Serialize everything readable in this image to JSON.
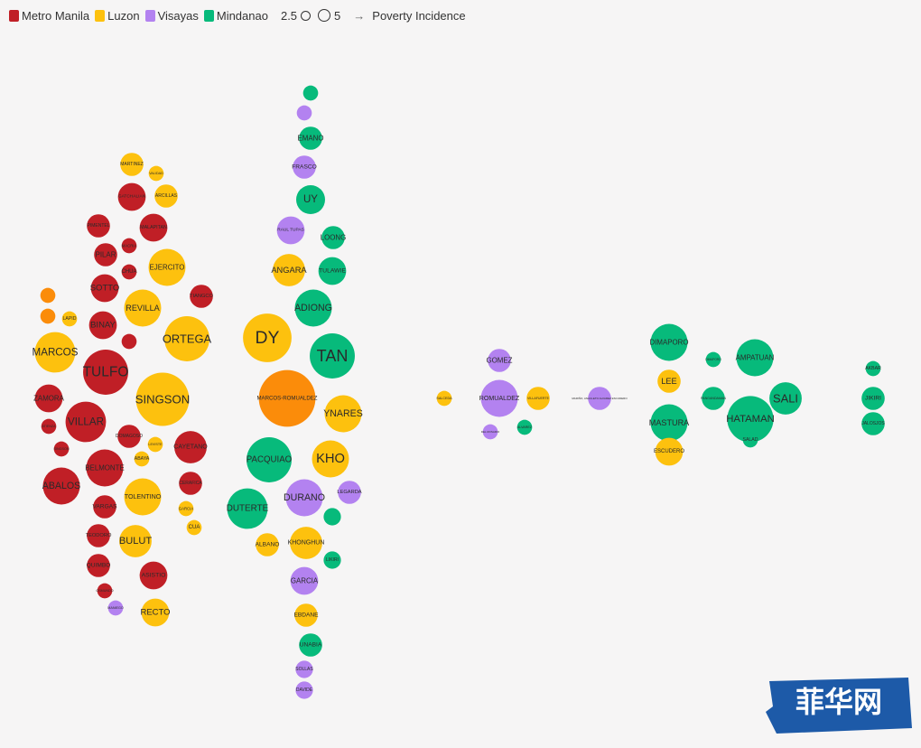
{
  "legend": {
    "items": [
      {
        "label": "Metro Manila",
        "color": "#c01f26"
      },
      {
        "label": "Luzon",
        "color": "#fdc10e"
      },
      {
        "label": "Visayas",
        "color": "#b382f0"
      },
      {
        "label": "Mindanao",
        "color": "#07ba7b"
      }
    ],
    "size_small": "2.5",
    "size_large": "5",
    "arrow": "→",
    "x_measure": "Poverty Incidence"
  },
  "colors": {
    "Metro Manila": "#c01f26",
    "Luzon": "#fdc10e",
    "Visayas": "#b382f0",
    "Mindanao": "#07ba7b",
    "Mixed": "#fb8c0a"
  },
  "watermark": {
    "text": "菲华网",
    "color": "#1d5aa8"
  },
  "chart_data": {
    "type": "scatter",
    "subtype": "beeswarm bubble chart",
    "x_measure": "Poverty Incidence",
    "size_legend": [
      2.5,
      5
    ],
    "bubbles": [
      {
        "label": "",
        "group": "Mindanao",
        "size": 1.3
      },
      {
        "label": "",
        "group": "Visayas",
        "size": 1.3
      },
      {
        "label": "EMANO",
        "group": "Mindanao",
        "size": 2.0
      },
      {
        "label": "FRASCO",
        "group": "Visayas",
        "size": 2.0
      },
      {
        "label": "UY",
        "group": "Mindanao",
        "size": 2.5
      },
      {
        "label": "RAUL TUPAS",
        "group": "Visayas",
        "size": 2.4
      },
      {
        "label": "LOONG",
        "group": "Mindanao",
        "size": 2.0
      },
      {
        "label": "ANGARA",
        "group": "Luzon",
        "size": 2.8
      },
      {
        "label": "TULAWIE",
        "group": "Mindanao",
        "size": 2.4
      },
      {
        "label": "ADIONG",
        "group": "Mindanao",
        "size": 3.2
      },
      {
        "label": "DY",
        "group": "Luzon",
        "size": 4.2
      },
      {
        "label": "TAN",
        "group": "Mindanao",
        "size": 3.9
      },
      {
        "label": "MARCOS-ROMUALDEZ",
        "group": "Mixed",
        "size": 4.9
      },
      {
        "label": "YNARES",
        "group": "Luzon",
        "size": 3.2
      },
      {
        "label": "PACQUIAO",
        "group": "Mindanao",
        "size": 3.9
      },
      {
        "label": "KHO",
        "group": "Luzon",
        "size": 3.2
      },
      {
        "label": "DURANO",
        "group": "Visayas",
        "size": 3.2
      },
      {
        "label": "LEGARDA",
        "group": "Visayas",
        "size": 2.0
      },
      {
        "label": "DUTERTE",
        "group": "Mindanao",
        "size": 3.5
      },
      {
        "label": "",
        "group": "Mindanao",
        "size": 1.5
      },
      {
        "label": "ALBANO",
        "group": "Luzon",
        "size": 2.0
      },
      {
        "label": "KHONGHUN",
        "group": "Luzon",
        "size": 2.8
      },
      {
        "label": "LIKIRI",
        "group": "Mindanao",
        "size": 1.5
      },
      {
        "label": "GARCIA",
        "group": "Visayas",
        "size": 2.4
      },
      {
        "label": "EBDANE",
        "group": "Luzon",
        "size": 2.0
      },
      {
        "label": "UNABIA",
        "group": "Mindanao",
        "size": 2.0
      },
      {
        "label": "SOLLAS",
        "group": "Visayas",
        "size": 1.5
      },
      {
        "label": "DAVIDE",
        "group": "Visayas",
        "size": 1.5
      },
      {
        "label": "MARTINEZ",
        "group": "Luzon",
        "size": 2.0
      },
      {
        "label": "VALIDAD",
        "group": "Luzon",
        "size": 1.3
      },
      {
        "label": "GATCHALIAN",
        "group": "Metro Manila",
        "size": 2.4
      },
      {
        "label": "ARCILLAS",
        "group": "Luzon",
        "size": 2.0
      },
      {
        "label": "PIMENTEL",
        "group": "Metro Manila",
        "size": 2.0
      },
      {
        "label": "MALAPITAN",
        "group": "Metro Manila",
        "size": 2.4
      },
      {
        "label": "MACRIA",
        "group": "Metro Manila",
        "size": 1.3
      },
      {
        "label": "PILAR",
        "group": "Metro Manila",
        "size": 2.0
      },
      {
        "label": "CHUA",
        "group": "Metro Manila",
        "size": 1.3
      },
      {
        "label": "EJERCITO",
        "group": "Luzon",
        "size": 3.2
      },
      {
        "label": "SOTTO",
        "group": "Metro Manila",
        "size": 2.4
      },
      {
        "label": "TIANGCO",
        "group": "Metro Manila",
        "size": 2.0
      },
      {
        "label": "",
        "group": "Mixed",
        "size": 1.3
      },
      {
        "label": "",
        "group": "Mixed",
        "size": 1.3
      },
      {
        "label": "REVILLA",
        "group": "Luzon",
        "size": 3.2
      },
      {
        "label": "LAPID",
        "group": "Luzon",
        "size": 1.3
      },
      {
        "label": "BINAY",
        "group": "Metro Manila",
        "size": 2.4
      },
      {
        "label": "ORTEGA",
        "group": "Luzon",
        "size": 3.9
      },
      {
        "label": "",
        "group": "Metro Manila",
        "size": 1.3
      },
      {
        "label": "MARCOS",
        "group": "Luzon",
        "size": 3.5
      },
      {
        "label": "TULFO",
        "group": "Metro Manila",
        "size": 3.9
      },
      {
        "label": "SINGSON",
        "group": "Luzon",
        "size": 4.6
      },
      {
        "label": "ZAMORA",
        "group": "Metro Manila",
        "size": 2.4
      },
      {
        "label": "VILLAR",
        "group": "Metro Manila",
        "size": 3.5
      },
      {
        "label": "ATIENZA",
        "group": "Metro Manila",
        "size": 1.3
      },
      {
        "label": "DOMAGOSO",
        "group": "Metro Manila",
        "size": 2.0
      },
      {
        "label": "LEVISTE",
        "group": "Luzon",
        "size": 1.3
      },
      {
        "label": "CAYETANO",
        "group": "Metro Manila",
        "size": 2.8
      },
      {
        "label": "SINGSON",
        "group": "Metro Manila",
        "size": 1.3
      },
      {
        "label": "BELMONTE",
        "group": "Metro Manila",
        "size": 3.2
      },
      {
        "label": "ABAYA",
        "group": "Luzon",
        "size": 1.3
      },
      {
        "label": "ABALOS",
        "group": "Metro Manila",
        "size": 3.2
      },
      {
        "label": "CERAFICA",
        "group": "Metro Manila",
        "size": 2.0
      },
      {
        "label": "TOLENTINO",
        "group": "Luzon",
        "size": 3.2
      },
      {
        "label": "VARGAS",
        "group": "Metro Manila",
        "size": 2.0
      },
      {
        "label": "GARCIA",
        "group": "Luzon",
        "size": 1.3
      },
      {
        "label": "CUA",
        "group": "Luzon",
        "size": 1.3
      },
      {
        "label": "TEODORO",
        "group": "Metro Manila",
        "size": 2.0
      },
      {
        "label": "BULUT",
        "group": "Luzon",
        "size": 2.8
      },
      {
        "label": "QUIMBO",
        "group": "Metro Manila",
        "size": 2.0
      },
      {
        "label": "ASISTIO",
        "group": "Metro Manila",
        "size": 2.4
      },
      {
        "label": "OSMUNDO",
        "group": "Metro Manila",
        "size": 1.3
      },
      {
        "label": "MANIEGO",
        "group": "Visayas",
        "size": 1.3
      },
      {
        "label": "RECTO",
        "group": "Luzon",
        "size": 2.4
      },
      {
        "label": "SALCEDA",
        "group": "Luzon",
        "size": 1.3
      },
      {
        "label": "GOMEZ",
        "group": "Visayas",
        "size": 2.0
      },
      {
        "label": "ROMUALDEZ",
        "group": "Visayas",
        "size": 3.2
      },
      {
        "label": "DEL ROSARIO",
        "group": "Visayas",
        "size": 1.3
      },
      {
        "label": "VILLAFUERTE",
        "group": "Luzon",
        "size": 2.0
      },
      {
        "label": "ALVAREZ",
        "group": "Mindanao",
        "size": 1.3
      },
      {
        "label": "MARIÑO, ANACLETO ALVAREZ ESCUDERO",
        "group": "Visayas",
        "size": 2.0
      },
      {
        "label": "DIMAPORO",
        "group": "Mindanao",
        "size": 3.2
      },
      {
        "label": "LEE",
        "group": "Luzon",
        "size": 2.0
      },
      {
        "label": "MASTURA",
        "group": "Mindanao",
        "size": 3.2
      },
      {
        "label": "ESCUDERO",
        "group": "Luzon",
        "size": 2.4
      },
      {
        "label": "DIMAPORO",
        "group": "Mindanao",
        "size": 1.3
      },
      {
        "label": "PANGANDAMAN",
        "group": "Mindanao",
        "size": 2.0
      },
      {
        "label": "AMPATUAN",
        "group": "Mindanao",
        "size": 3.2
      },
      {
        "label": "SALI",
        "group": "Mindanao",
        "size": 2.8
      },
      {
        "label": "HATAMAN",
        "group": "Mindanao",
        "size": 4.0
      },
      {
        "label": "SALAD",
        "group": "Mindanao",
        "size": 1.3
      },
      {
        "label": "AKBAR",
        "group": "Mindanao",
        "size": 1.3
      },
      {
        "label": "JIKIRI",
        "group": "Mindanao",
        "size": 2.0
      },
      {
        "label": "JALOSJOS",
        "group": "Mindanao",
        "size": 2.0
      },
      {
        "label": "UY",
        "group": "Mindanao",
        "size": 1.3
      }
    ]
  }
}
